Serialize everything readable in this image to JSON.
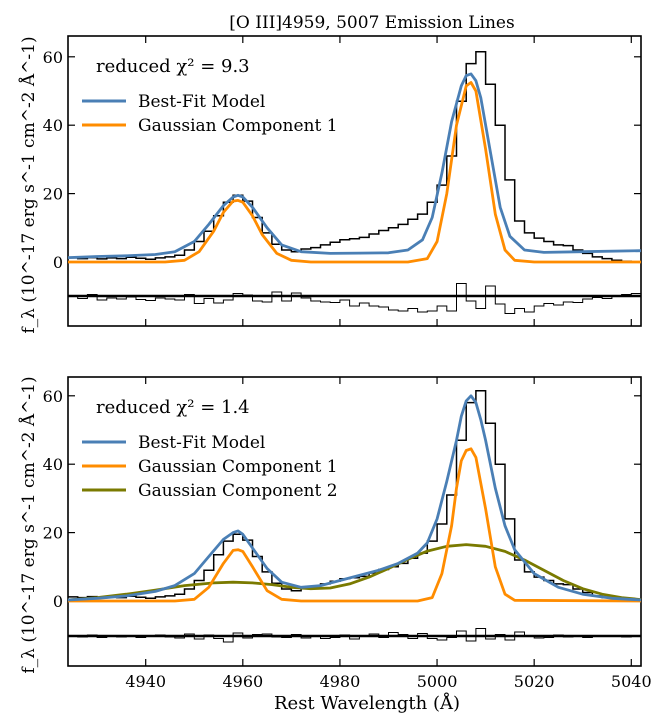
{
  "figure": {
    "title": "[O III]4959, 5007 Emission Lines",
    "ylabel": "f_λ (10^-17 erg s^-1 cm^-2 Å^-1)",
    "xlabel": "Rest Wavelength (Å)"
  },
  "colors": {
    "data": "#000000",
    "best_fit": "#4a7fb5",
    "gauss1": "#ff8c00",
    "gauss2": "#7a7a00",
    "residual_zero": "#000000"
  },
  "chart_data": [
    {
      "type": "line",
      "panel": "top",
      "annotation": "reduced χ² = 9.3",
      "xlim": [
        4924,
        5042
      ],
      "ylim": [
        -4,
        64
      ],
      "xticks": [
        4940,
        4960,
        4980,
        5000,
        5020,
        5040
      ],
      "yticks": [
        0,
        20,
        40,
        60
      ],
      "legend": [
        "Best-Fit Model",
        "Gaussian Component 1"
      ],
      "legend_position": "top-left",
      "observed_step": {
        "x": [
          4924,
          4926,
          4928,
          4930,
          4932,
          4934,
          4936,
          4938,
          4940,
          4942,
          4944,
          4946,
          4948,
          4950,
          4952,
          4954,
          4956,
          4958,
          4960,
          4962,
          4964,
          4966,
          4968,
          4970,
          4972,
          4974,
          4976,
          4978,
          4980,
          4982,
          4984,
          4986,
          4988,
          4990,
          4992,
          4994,
          4996,
          4998,
          5000,
          5002,
          5004,
          5006,
          5008,
          5010,
          5012,
          5014,
          5016,
          5018,
          5020,
          5022,
          5024,
          5026,
          5028,
          5030,
          5032,
          5034,
          5036,
          5038,
          5040,
          5042
        ],
        "y": [
          1.2,
          1.0,
          1.3,
          0.9,
          1.2,
          1.0,
          1.4,
          1.1,
          0.8,
          1.2,
          1.5,
          2.0,
          3.5,
          6.0,
          9.0,
          13.5,
          17.5,
          19.5,
          17.8,
          13.0,
          8.5,
          5.2,
          3.5,
          3.0,
          3.8,
          4.2,
          5.0,
          5.8,
          6.5,
          6.8,
          7.2,
          8.2,
          9.2,
          10.0,
          11.0,
          12.5,
          14.0,
          17.5,
          22.5,
          31.0,
          47.0,
          58.0,
          61.5,
          52.0,
          40.0,
          24.0,
          12.0,
          8.5,
          7.0,
          6.0,
          5.0,
          4.8,
          3.5,
          2.5,
          1.5,
          1.0,
          0.5,
          0.2,
          0.0,
          0.0
        ]
      },
      "series": [
        {
          "name": "Best-Fit Model",
          "x": [
            4924,
            4930,
            4936,
            4942,
            4946,
            4950,
            4953,
            4956,
            4958,
            4959,
            4960,
            4962,
            4965,
            4968,
            4972,
            4978,
            4984,
            4990,
            4994,
            4997,
            4999,
            5001,
            5003,
            5005,
            5006,
            5007,
            5008,
            5009,
            5011,
            5013,
            5015,
            5018,
            5022,
            5030,
            5042
          ],
          "y": [
            1.3,
            1.6,
            1.8,
            2.2,
            3.0,
            6.0,
            11.0,
            16.5,
            19.0,
            19.5,
            19.0,
            16.0,
            10.0,
            5.0,
            3.0,
            2.5,
            2.6,
            2.7,
            3.5,
            6.5,
            13.0,
            26.0,
            41.0,
            51.5,
            54.5,
            55.0,
            53.0,
            48.0,
            32.0,
            16.0,
            7.5,
            3.5,
            2.8,
            3.0,
            3.3
          ]
        },
        {
          "name": "Gaussian Component 1",
          "x": [
            4924,
            4944,
            4948,
            4951,
            4954,
            4956,
            4958,
            4959,
            4960,
            4962,
            4964,
            4967,
            4970,
            4974,
            4994,
            4998,
            5000,
            5002,
            5004,
            5006,
            5007,
            5008,
            5010,
            5012,
            5014,
            5016,
            5020,
            5042
          ],
          "y": [
            0,
            0,
            0.5,
            3.0,
            9.0,
            14.5,
            17.8,
            18.0,
            17.5,
            13.5,
            8.0,
            2.5,
            0.5,
            0,
            0,
            1.0,
            6.0,
            20.0,
            40.0,
            51.5,
            52.5,
            50.0,
            33.0,
            14.0,
            3.5,
            0.5,
            0,
            0
          ]
        }
      ],
      "residuals": {
        "x": [
          4924,
          4926,
          4928,
          4930,
          4932,
          4934,
          4936,
          4938,
          4940,
          4942,
          4944,
          4946,
          4948,
          4950,
          4952,
          4954,
          4956,
          4958,
          4960,
          4962,
          4964,
          4966,
          4968,
          4970,
          4972,
          4974,
          4976,
          4978,
          4980,
          4982,
          4984,
          4986,
          4988,
          4990,
          4992,
          4994,
          4996,
          4998,
          5000,
          5002,
          5004,
          5006,
          5008,
          5010,
          5012,
          5014,
          5016,
          5018,
          5020,
          5022,
          5024,
          5026,
          5028,
          5030,
          5032,
          5034,
          5036,
          5038,
          5040,
          5042
        ],
        "y": [
          -0.1,
          -0.5,
          0.3,
          -0.8,
          -0.4,
          -0.6,
          -0.2,
          -0.7,
          -0.9,
          -0.4,
          -0.6,
          -0.8,
          0.3,
          -1.5,
          -0.5,
          -1.4,
          -0.8,
          0.5,
          0.2,
          -1.0,
          -1.2,
          0.8,
          -1.0,
          0.6,
          -0.4,
          -1.0,
          -1.2,
          -1.3,
          -0.8,
          -2.0,
          -1.4,
          -2.0,
          -2.2,
          -2.8,
          -3.0,
          -2.5,
          -3.2,
          -3.0,
          -2.0,
          -3.0,
          2.5,
          -1.0,
          -2.5,
          2.0,
          -1.6,
          -3.5,
          -2.5,
          -3.2,
          -2.0,
          -1.5,
          -1.8,
          -1.2,
          -1.3,
          -0.6,
          -0.3,
          -0.5,
          0.0,
          0.3,
          0.5,
          0.6
        ]
      }
    },
    {
      "type": "line",
      "panel": "bottom",
      "annotation": "reduced χ² = 1.4",
      "xlim": [
        4924,
        5042
      ],
      "ylim": [
        -4,
        64
      ],
      "xticks": [
        4940,
        4960,
        4980,
        5000,
        5020,
        5040
      ],
      "yticks": [
        0,
        20,
        40,
        60
      ],
      "legend": [
        "Best-Fit Model",
        "Gaussian Component 1",
        "Gaussian Component 2"
      ],
      "legend_position": "top-left",
      "observed_step": {
        "x": [
          4924,
          4926,
          4928,
          4930,
          4932,
          4934,
          4936,
          4938,
          4940,
          4942,
          4944,
          4946,
          4948,
          4950,
          4952,
          4954,
          4956,
          4958,
          4960,
          4962,
          4964,
          4966,
          4968,
          4970,
          4972,
          4974,
          4976,
          4978,
          4980,
          4982,
          4984,
          4986,
          4988,
          4990,
          4992,
          4994,
          4996,
          4998,
          5000,
          5002,
          5004,
          5006,
          5008,
          5010,
          5012,
          5014,
          5016,
          5018,
          5020,
          5022,
          5024,
          5026,
          5028,
          5030,
          5032,
          5034,
          5036,
          5038,
          5040,
          5042
        ],
        "y": [
          1.2,
          1.0,
          1.3,
          0.9,
          1.2,
          1.0,
          1.4,
          1.1,
          0.8,
          1.2,
          1.5,
          2.0,
          3.5,
          6.0,
          9.0,
          13.5,
          17.5,
          19.5,
          17.8,
          13.0,
          8.5,
          5.2,
          3.5,
          3.0,
          3.8,
          4.2,
          5.0,
          5.8,
          6.5,
          6.8,
          7.2,
          8.2,
          9.2,
          10.0,
          11.0,
          12.5,
          14.0,
          17.5,
          22.5,
          31.0,
          47.0,
          58.0,
          61.5,
          52.0,
          40.0,
          24.0,
          12.0,
          8.5,
          7.0,
          6.0,
          5.0,
          4.8,
          3.5,
          2.5,
          1.5,
          1.0,
          0.5,
          0.2,
          0.0,
          0.0
        ]
      },
      "series": [
        {
          "name": "Best-Fit Model",
          "x": [
            4924,
            4930,
            4936,
            4942,
            4946,
            4950,
            4953,
            4956,
            4958,
            4959,
            4960,
            4962,
            4965,
            4968,
            4972,
            4976,
            4980,
            4984,
            4988,
            4992,
            4996,
            4998,
            5000,
            5002,
            5004,
            5005,
            5006,
            5007,
            5008,
            5009,
            5010,
            5012,
            5014,
            5016,
            5020,
            5025,
            5030,
            5036,
            5042
          ],
          "y": [
            0.3,
            0.8,
            1.5,
            2.8,
            4.5,
            8.0,
            13.0,
            18.0,
            20.0,
            20.5,
            19.5,
            15.5,
            9.5,
            5.5,
            4.0,
            4.5,
            6.0,
            7.5,
            9.0,
            11.0,
            14.0,
            17.0,
            24.0,
            35.0,
            47.0,
            54.0,
            58.5,
            60.0,
            58.0,
            53.0,
            47.0,
            33.0,
            22.0,
            15.0,
            8.0,
            4.0,
            2.0,
            0.8,
            0.3
          ]
        },
        {
          "name": "Gaussian Component 1",
          "x": [
            4924,
            4946,
            4950,
            4953,
            4956,
            4958,
            4959,
            4960,
            4962,
            4965,
            4968,
            4972,
            4996,
            4999,
            5001,
            5003,
            5004,
            5005,
            5006,
            5007,
            5008,
            5010,
            5012,
            5014,
            5016,
            5042
          ],
          "y": [
            0,
            0,
            0.5,
            4.0,
            11.0,
            14.8,
            15.0,
            14.5,
            10.0,
            3.0,
            0.5,
            0,
            0,
            1.0,
            8.0,
            22.0,
            33.0,
            41.0,
            44.0,
            44.5,
            42.0,
            27.0,
            10.0,
            2.0,
            0.2,
            0
          ]
        },
        {
          "name": "Gaussian Component 2",
          "x": [
            4924,
            4930,
            4936,
            4942,
            4948,
            4954,
            4958,
            4962,
            4966,
            4970,
            4974,
            4978,
            4982,
            4986,
            4990,
            4994,
            4998,
            5002,
            5006,
            5010,
            5014,
            5018,
            5022,
            5026,
            5030,
            5034,
            5038,
            5042
          ],
          "y": [
            0.3,
            1.0,
            2.0,
            3.2,
            4.5,
            5.3,
            5.5,
            5.3,
            4.8,
            4.0,
            3.6,
            3.8,
            5.0,
            7.0,
            9.5,
            12.2,
            14.6,
            16.0,
            16.5,
            16.0,
            14.5,
            12.0,
            9.0,
            6.0,
            3.6,
            2.0,
            1.0,
            0.4
          ]
        }
      ],
      "residuals": {
        "x": [
          4924,
          4926,
          4928,
          4930,
          4932,
          4934,
          4936,
          4938,
          4940,
          4942,
          4944,
          4946,
          4948,
          4950,
          4952,
          4954,
          4956,
          4958,
          4960,
          4962,
          4964,
          4966,
          4968,
          4970,
          4972,
          4974,
          4976,
          4978,
          4980,
          4982,
          4984,
          4986,
          4988,
          4990,
          4992,
          4994,
          4996,
          4998,
          5000,
          5002,
          5004,
          5006,
          5008,
          5010,
          5012,
          5014,
          5016,
          5018,
          5020,
          5022,
          5024,
          5026,
          5028,
          5030,
          5032,
          5034,
          5036,
          5038,
          5040,
          5042
        ],
        "y": [
          0.1,
          -0.2,
          0.2,
          -0.3,
          0.1,
          -0.2,
          0.0,
          -0.3,
          -0.1,
          0.2,
          -0.2,
          -0.4,
          0.4,
          -0.6,
          0.2,
          -0.5,
          -1.2,
          0.6,
          -0.4,
          0.3,
          0.4,
          -0.2,
          -0.3,
          0.3,
          -0.4,
          0.0,
          -0.5,
          -0.3,
          0.2,
          -0.6,
          0.0,
          0.4,
          -0.3,
          0.7,
          0.3,
          -0.5,
          0.5,
          -0.5,
          -0.8,
          -0.3,
          1.0,
          -1.0,
          1.5,
          -0.6,
          0.3,
          -0.8,
          0.8,
          0.0,
          -0.4,
          -0.3,
          0.2,
          -0.2,
          0.0,
          -0.3,
          -0.1,
          0.0,
          -0.1,
          -0.2,
          0.1,
          0.0
        ]
      }
    }
  ]
}
